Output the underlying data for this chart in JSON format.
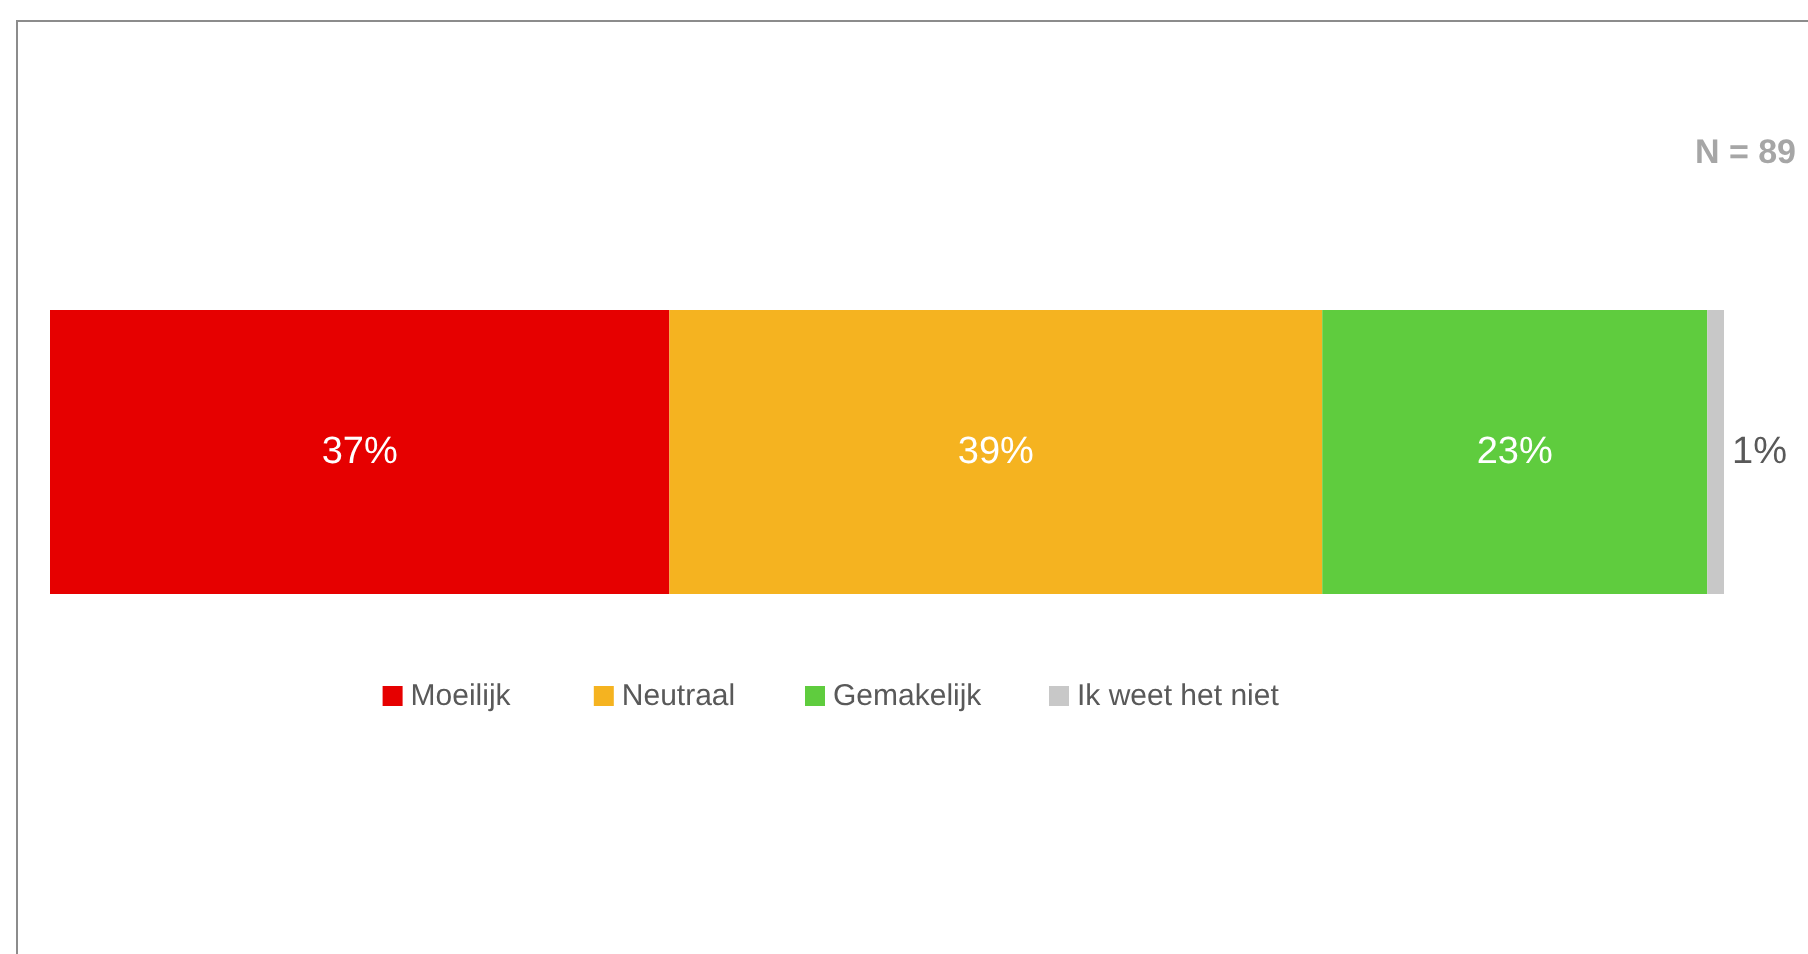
{
  "chart_data": {
    "type": "bar",
    "orientation": "horizontal",
    "stacked": true,
    "categories": [
      null
    ],
    "series": [
      {
        "name": "Moeilijk",
        "color": "#e60000",
        "values": [
          37
        ],
        "value_labels": [
          "37%"
        ]
      },
      {
        "name": "Neutraal",
        "color": "#f5b320",
        "values": [
          39
        ],
        "value_labels": [
          "39%"
        ]
      },
      {
        "name": "Gemakelijk",
        "color": "#5fcc3e",
        "values": [
          23
        ],
        "value_labels": [
          "23%"
        ]
      },
      {
        "name": "Ik weet het niet",
        "color": "#c8c8c8",
        "values": [
          1
        ],
        "value_labels": [
          "1%"
        ]
      }
    ],
    "annotations": [
      "N = 89"
    ],
    "legend": "bottom"
  }
}
